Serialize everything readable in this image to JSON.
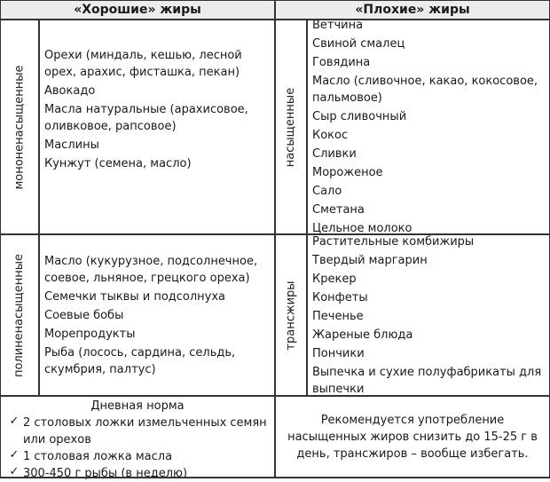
{
  "header": {
    "good": "«Хорошие» жиры",
    "bad": "«Плохие» жиры"
  },
  "good": {
    "mono": {
      "label": "мононенасыщенные",
      "items": [
        "Орехи (миндаль, кешью, лесной орех, арахис, фисташка, пекан)",
        "Авокадо",
        "Масла натуральные (арахисовое, оливковое, рапсовое)",
        "Маслины",
        "Кунжут (семена, масло)"
      ]
    },
    "poly": {
      "label": "полиненасыщенные",
      "items": [
        "Масло (кукурузное, подсолнечное, соевое, льняное, грецкого ореха)",
        "Семечки тыквы и подсолнуха",
        "Соевые бобы",
        "Морепродукты",
        "Рыба (лосось, сардина, сельдь, скумбрия, палтус)"
      ]
    }
  },
  "bad": {
    "saturated": {
      "label": "насыщенные",
      "items": [
        "Ветчина",
        "Свиной смалец",
        "Говядина",
        "Масло (сливочное, какао, кокосовое, пальмовое)",
        "Сыр сливочный",
        "Кокос",
        "Сливки",
        "Мороженое",
        "Сало",
        "Сметана",
        "Цельное молоко"
      ]
    },
    "trans": {
      "label": "трансжиры",
      "items": [
        "Растительные комбижиры",
        "Твердый маргарин",
        "Крекер",
        "Конфеты",
        "Печенье",
        "Жареные блюда",
        "Пончики",
        "Выпечка и сухие полуфабрикаты для выпечки"
      ]
    }
  },
  "footer": {
    "daily_title": "Дневная норма",
    "check_mark": "✓",
    "daily_items": [
      "2 столовых ложки измельченных семян или орехов",
      "1 столовая ложка масла",
      "300-450 г рыбы (в неделю)"
    ],
    "recommendation": "Рекомендуется употребление насыщенных жиров снизить до 15-25 г в день, трансжиров – вообще избегать."
  }
}
